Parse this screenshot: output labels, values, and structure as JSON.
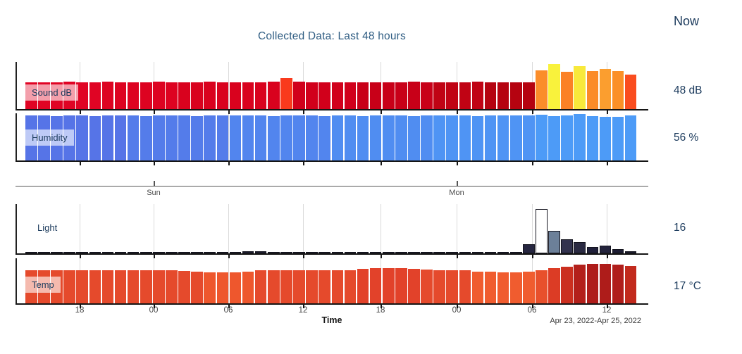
{
  "now_label": "Now",
  "chart_data": {
    "type": "bar",
    "title": "Collected Data: Last 48 hours",
    "xlabel": "Time",
    "date_range": "Apr 23, 2022-Apr 25, 2022",
    "n_bars": 48,
    "x_unit": "hour",
    "time_ticks": [
      "18",
      "00",
      "06",
      "12",
      "18",
      "00",
      "06",
      "12"
    ],
    "day_ticks": [
      "Sun",
      "Mon"
    ],
    "legend_position": "left-overlay",
    "grid": "vertical-6h",
    "series": [
      {
        "name": "Sound dB",
        "current": "48 dB",
        "values_pct": [
          57,
          57,
          57,
          58,
          57,
          57,
          58,
          57,
          57,
          57,
          58,
          57,
          57,
          57,
          58,
          57,
          57,
          57,
          57,
          58,
          66,
          58,
          56,
          56,
          57,
          56,
          57,
          56,
          56,
          57,
          58,
          56,
          57,
          56,
          57,
          58,
          56,
          56,
          57,
          56,
          82,
          95,
          79,
          91,
          80,
          85,
          80,
          73
        ],
        "colors": [
          "#E00424",
          "#E00424",
          "#E00424",
          "#E00424",
          "#E00424",
          "#E00424",
          "#DD0321",
          "#DD0321",
          "#DD0321",
          "#DD0321",
          "#DD0321",
          "#DD0321",
          "#D9021E",
          "#D9021E",
          "#D9021E",
          "#D9021E",
          "#D9021E",
          "#D9021E",
          "#D9021E",
          "#D9021E",
          "#F93A1D",
          "#D1001B",
          "#D1001B",
          "#D1001B",
          "#D1001B",
          "#D1001B",
          "#C80018",
          "#C80018",
          "#C80018",
          "#C80018",
          "#C80018",
          "#C80018",
          "#C00314",
          "#C00314",
          "#C00314",
          "#C00314",
          "#B50310",
          "#B50310",
          "#B50310",
          "#B50310",
          "#FB8D2A",
          "#F9F23C",
          "#FB8126",
          "#F8E93B",
          "#FB8B28",
          "#FB9E2F",
          "#FB9027",
          "#FA4D1F"
        ],
        "outlined": false
      },
      {
        "name": "Humidity",
        "current": "56 %",
        "values_pct": [
          95,
          95,
          94,
          95,
          95,
          94,
          95,
          95,
          95,
          94,
          95,
          95,
          95,
          94,
          95,
          95,
          96,
          95,
          95,
          94,
          95,
          95,
          95,
          94,
          95,
          95,
          94,
          95,
          95,
          95,
          94,
          95,
          95,
          95,
          95,
          94,
          95,
          95,
          96,
          95,
          97,
          94,
          95,
          98,
          94,
          92,
          93,
          95
        ],
        "colors": [
          "#5674E7",
          "#5674E7",
          "#5674E7",
          "#5674E7",
          "#5674E7",
          "#5674E7",
          "#5674E7",
          "#5674E7",
          "#547CEA",
          "#547CEA",
          "#547CEA",
          "#547CEA",
          "#547CEA",
          "#547CEA",
          "#547CEA",
          "#547CEA",
          "#5285EE",
          "#5285EE",
          "#5285EE",
          "#5285EE",
          "#5285EE",
          "#5285EE",
          "#5285EE",
          "#5285EE",
          "#508DF1",
          "#508DF1",
          "#508DF1",
          "#508DF1",
          "#508DF1",
          "#508DF1",
          "#508DF1",
          "#508DF1",
          "#4F94F4",
          "#4F94F4",
          "#4F94F4",
          "#4F94F4",
          "#4F94F4",
          "#4F94F4",
          "#4F94F4",
          "#4F94F4",
          "#4D9BF7",
          "#4D9BF7",
          "#4D9BF7",
          "#4D9BF7",
          "#4D9BF7",
          "#4D9BF7",
          "#4D9BF7",
          "#4D9BF7"
        ],
        "outlined": false
      },
      {
        "name": "Light",
        "current": "16",
        "values_pct": [
          2,
          2,
          2,
          2,
          2,
          2,
          2,
          2,
          2,
          2,
          2,
          2,
          2,
          2,
          2,
          2,
          3,
          4,
          5,
          3,
          2,
          2,
          2,
          2,
          2,
          2,
          2,
          2,
          2,
          3,
          3,
          3,
          2,
          2,
          2,
          2,
          2,
          2,
          2,
          18,
          90,
          46,
          28,
          23,
          13,
          16,
          8,
          4
        ],
        "colors": [
          "#1C1C30",
          "#1C1C30",
          "#1C1C30",
          "#1C1C30",
          "#1C1C30",
          "#1C1C30",
          "#1C1C30",
          "#1C1C30",
          "#1C1C30",
          "#1C1C30",
          "#1C1C30",
          "#1C1C30",
          "#1C1C30",
          "#1C1C30",
          "#1C1C30",
          "#1C1C30",
          "#1C1C30",
          "#1C1C30",
          "#1C1C30",
          "#1C1C30",
          "#1C1C30",
          "#1C1C30",
          "#1C1C30",
          "#1C1C30",
          "#1C1C30",
          "#1C1C30",
          "#1C1C30",
          "#1C1C30",
          "#1C1C30",
          "#1C1C30",
          "#1C1C30",
          "#1C1C30",
          "#1C1C30",
          "#1C1C30",
          "#1C1C30",
          "#1C1C30",
          "#1C1C30",
          "#1C1C30",
          "#1C1C30",
          "#262640",
          "#FFFFFF",
          "#6C8099",
          "#32324E",
          "#2A2A42",
          "#20203A",
          "#23233C",
          "#1D1D33",
          "#1A1A2E"
        ],
        "outlined": true
      },
      {
        "name": "Temp",
        "current": "17 °C",
        "values_pct": [
          73,
          74,
          73,
          74,
          73,
          74,
          74,
          73,
          74,
          73,
          74,
          73,
          72,
          71,
          69,
          68,
          69,
          71,
          73,
          74,
          73,
          74,
          74,
          73,
          74,
          74,
          77,
          78,
          78,
          78,
          77,
          75,
          74,
          73,
          73,
          71,
          70,
          69,
          69,
          70,
          74,
          78,
          82,
          86,
          87,
          87,
          86,
          83
        ],
        "colors": [
          "#E54A2C",
          "#E54A2C",
          "#E54A2C",
          "#E54A2C",
          "#E54A2C",
          "#E54A2C",
          "#E54A2C",
          "#E54A2C",
          "#E54A2C",
          "#E54A2C",
          "#E54A2C",
          "#E54A2C",
          "#E54A2C",
          "#E54A2C",
          "#EE572D",
          "#EE572D",
          "#EE572D",
          "#EE572D",
          "#E54A2C",
          "#E54A2C",
          "#E54A2C",
          "#E54A2C",
          "#E54A2C",
          "#E54A2C",
          "#E54A2C",
          "#E54A2C",
          "#E2422A",
          "#E2422A",
          "#E2422A",
          "#E2422A",
          "#E2422A",
          "#E54A2C",
          "#E54A2C",
          "#E54A2C",
          "#E54A2C",
          "#F05C2F",
          "#F05C2F",
          "#F05C2F",
          "#F05C2F",
          "#F05C2F",
          "#E8502C",
          "#DC3C25",
          "#CB2F1F",
          "#B3201B",
          "#AE1C1A",
          "#AE1C1A",
          "#B01E1B",
          "#C22A1D"
        ],
        "outlined": false
      }
    ]
  }
}
